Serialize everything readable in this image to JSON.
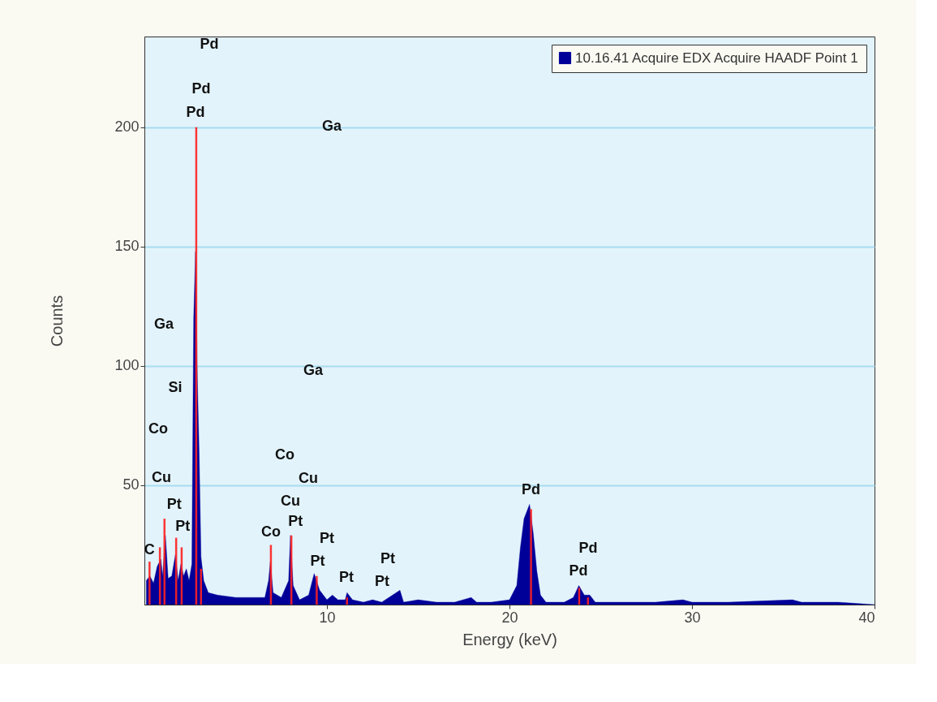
{
  "chart_data": {
    "type": "area",
    "xlabel": "Energy (keV)",
    "ylabel": "Counts",
    "xlim": [
      0,
      40
    ],
    "ylim": [
      0,
      238
    ],
    "xticks": [
      10,
      20,
      30,
      40
    ],
    "yticks": [
      50,
      100,
      150,
      200
    ],
    "grid": "y",
    "legend": "top right",
    "series": [
      {
        "name": "10.16.41 Acquire EDX Acquire HAADF Point 1",
        "color": "#000099",
        "x": [
          0.1,
          0.3,
          0.5,
          0.7,
          0.9,
          1.0,
          1.15,
          1.3,
          1.5,
          1.7,
          1.85,
          2.0,
          2.15,
          2.3,
          2.45,
          2.6,
          2.7,
          2.8,
          2.9,
          3.0,
          3.1,
          3.25,
          3.5,
          4.0,
          5.0,
          6.0,
          6.6,
          6.8,
          6.9,
          7.05,
          7.5,
          7.9,
          8.0,
          8.15,
          8.5,
          9.0,
          9.3,
          9.6,
          10.0,
          10.3,
          10.6,
          11.0,
          11.1,
          11.4,
          12.0,
          12.5,
          13.0,
          14.0,
          14.2,
          15.0,
          16.0,
          17.0,
          17.9,
          18.2,
          19.0,
          20.0,
          20.4,
          20.6,
          20.8,
          21.1,
          21.3,
          21.5,
          21.7,
          22.0,
          23.0,
          23.5,
          23.8,
          24.1,
          24.4,
          24.7,
          26.0,
          27.0,
          28.0,
          29.5,
          30.0,
          32.0,
          35.5,
          36.0,
          38.0,
          40.0
        ],
        "values": [
          10,
          12,
          9,
          16,
          19,
          12,
          29,
          11,
          12,
          21,
          10,
          17,
          12,
          15,
          10,
          17,
          120,
          148,
          95,
          63,
          20,
          10,
          5,
          4,
          3,
          3,
          3,
          10,
          18,
          5,
          3,
          10,
          29,
          8,
          2,
          4,
          13,
          6,
          2,
          4,
          2,
          2,
          5,
          2,
          1,
          2,
          1,
          6,
          1,
          2,
          1,
          1,
          3,
          1,
          1,
          2,
          8,
          24,
          36,
          42,
          30,
          14,
          4,
          1,
          1,
          3,
          8,
          4,
          4,
          1,
          1,
          1,
          1,
          2,
          1,
          1,
          2,
          1,
          1,
          0
        ]
      },
      {
        "type": "bar",
        "color": "#ff2020",
        "x": [
          0.28,
          0.85,
          1.1,
          1.74,
          2.04,
          2.84,
          3.1,
          6.93,
          8.05,
          9.44,
          11.1,
          21.18,
          23.82,
          24.3
        ],
        "values": [
          18,
          24,
          36,
          28,
          24,
          200,
          15,
          25,
          29,
          12,
          3,
          40,
          7,
          3
        ]
      }
    ],
    "annotations": [
      "Pd",
      "Pd",
      "Pd",
      "Ga",
      "Ga",
      "Ga",
      "Si",
      "Co",
      "Co",
      "Cu",
      "Cu",
      {
        "text": "Pt",
        "x": 1.1,
        "y": 36
      },
      "Cu",
      {
        "text": "Pt",
        "x": 1.74,
        "y": 28
      },
      {
        "text": "Pt",
        "x": 8.05,
        "y": 29
      },
      {
        "text": "Co",
        "x": 6.93,
        "y": 25
      },
      "Pt",
      {
        "text": "Pt",
        "x": 9.44,
        "y": 12
      },
      "Pt",
      "Pt",
      "Pt",
      {
        "text": "Pd",
        "x": 21.18,
        "y": 40
      },
      "Pd",
      {
        "text": "Pd",
        "x": 23.82,
        "y": 7
      },
      {
        "text": "C",
        "x": 0.28,
        "y": 18
      }
    ]
  }
}
